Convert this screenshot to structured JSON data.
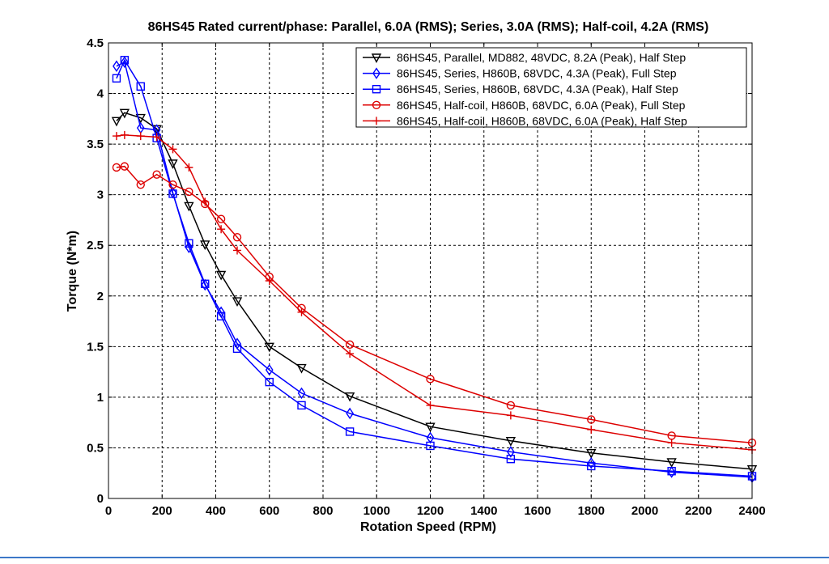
{
  "chart_data": {
    "type": "line",
    "title": "86HS45 Rated current/phase: Parallel, 6.0A (RMS); Series, 3.0A (RMS); Half-coil, 4.2A (RMS)",
    "xlabel": "Rotation Speed (RPM)",
    "ylabel": "Torque (N*m)",
    "xlim": [
      0,
      2400
    ],
    "ylim": [
      0,
      4.5
    ],
    "xticks": [
      0,
      200,
      400,
      600,
      800,
      1000,
      1200,
      1400,
      1600,
      1800,
      2000,
      2200,
      2400
    ],
    "yticks": [
      0,
      0.5,
      1,
      1.5,
      2,
      2.5,
      3,
      3.5,
      4,
      4.5
    ],
    "xtick_labels": [
      "0",
      "200",
      "400",
      "600",
      "800",
      "1000",
      "1200",
      "1400",
      "1600",
      "1800",
      "2000",
      "2200",
      "2400"
    ],
    "ytick_labels": [
      "0",
      "0.5",
      "1",
      "1.5",
      "2",
      "2.5",
      "3",
      "3.5",
      "4",
      "4.5"
    ],
    "grid": true,
    "legend_position": "top-right",
    "series": [
      {
        "name": "86HS45, Parallel, MD882, 48VDC, 8.2A (Peak), Half Step",
        "color": "#000000",
        "marker": "triangle-down",
        "x": [
          30,
          60,
          120,
          180,
          240,
          300,
          360,
          420,
          480,
          600,
          720,
          900,
          1200,
          1500,
          1800,
          2100,
          2400
        ],
        "y": [
          3.73,
          3.81,
          3.76,
          3.65,
          3.31,
          2.89,
          2.51,
          2.21,
          1.95,
          1.5,
          1.29,
          1.01,
          0.71,
          0.57,
          0.45,
          0.36,
          0.29
        ]
      },
      {
        "name": "86HS45, Series, H860B, 68VDC, 4.3A (Peak), Full Step",
        "color": "#0000ff",
        "marker": "diamond",
        "x": [
          30,
          60,
          120,
          180,
          240,
          300,
          360,
          420,
          480,
          600,
          720,
          900,
          1200,
          1500,
          1800,
          2100,
          2400
        ],
        "y": [
          4.27,
          4.31,
          3.66,
          3.64,
          3.02,
          2.48,
          2.11,
          1.84,
          1.53,
          1.27,
          1.04,
          0.84,
          0.6,
          0.46,
          0.35,
          0.26,
          0.21
        ]
      },
      {
        "name": "86HS45, Series, H860B, 68VDC, 4.3A (Peak), Half Step",
        "color": "#0000ff",
        "marker": "square",
        "x": [
          30,
          60,
          120,
          180,
          240,
          300,
          360,
          420,
          480,
          600,
          720,
          900,
          1200,
          1500,
          1800,
          2100,
          2400
        ],
        "y": [
          4.15,
          4.33,
          4.07,
          3.56,
          3.01,
          2.52,
          2.12,
          1.8,
          1.48,
          1.15,
          0.92,
          0.66,
          0.52,
          0.39,
          0.32,
          0.27,
          0.22
        ]
      },
      {
        "name": "86HS45, Half-coil, H860B, 68VDC, 6.0A (Peak), Full Step",
        "color": "#dd0000",
        "marker": "circle",
        "x": [
          30,
          60,
          120,
          180,
          240,
          300,
          360,
          420,
          480,
          600,
          720,
          900,
          1200,
          1500,
          1800,
          2100,
          2400
        ],
        "y": [
          3.27,
          3.28,
          3.1,
          3.2,
          3.1,
          3.03,
          2.91,
          2.76,
          2.58,
          2.19,
          1.88,
          1.52,
          1.18,
          0.92,
          0.78,
          0.62,
          0.55
        ]
      },
      {
        "name": "86HS45, Half-coil, H860B, 68VDC, 6.0A (Peak), Half Step",
        "color": "#dd0000",
        "marker": "plus",
        "x": [
          30,
          60,
          120,
          180,
          240,
          300,
          360,
          420,
          480,
          600,
          720,
          900,
          1200,
          1500,
          1800,
          2100,
          2400
        ],
        "y": [
          3.58,
          3.59,
          3.58,
          3.57,
          3.45,
          3.27,
          2.93,
          2.66,
          2.45,
          2.15,
          1.84,
          1.43,
          0.92,
          0.82,
          0.68,
          0.55,
          0.48
        ]
      }
    ]
  }
}
